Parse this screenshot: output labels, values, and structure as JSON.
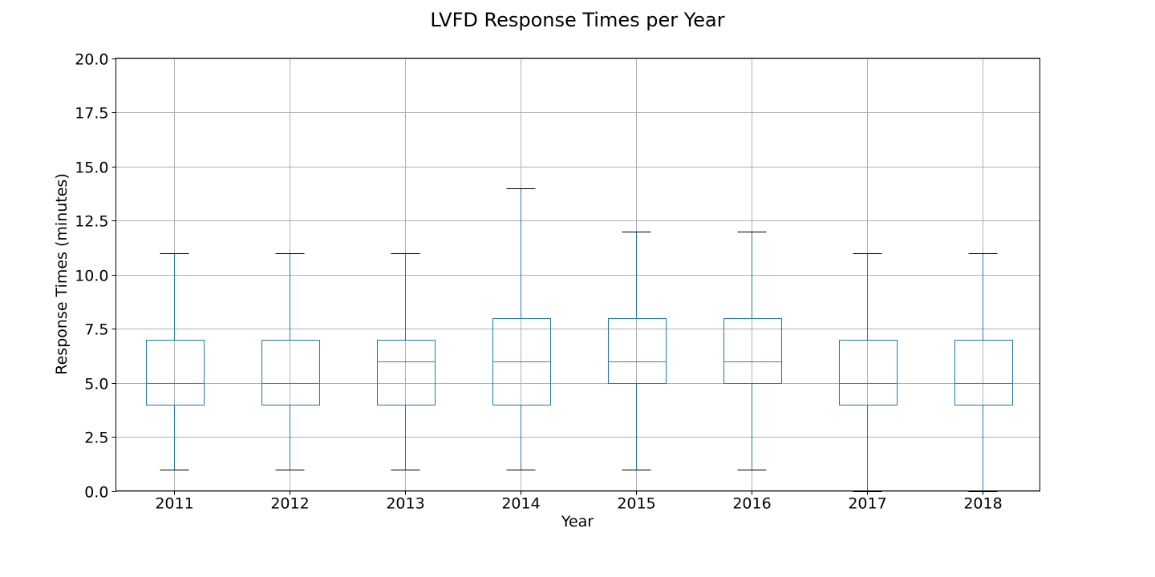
{
  "chart_data": {
    "type": "box",
    "title": "LVFD Response Times per Year",
    "xlabel": "Year",
    "ylabel": "Response Times (minutes)",
    "ylim": [
      0,
      20
    ],
    "yticks": [
      "0.0",
      "2.5",
      "5.0",
      "7.5",
      "10.0",
      "12.5",
      "15.0",
      "17.5",
      "20.0"
    ],
    "ytick_values": [
      0,
      2.5,
      5,
      7.5,
      10,
      12.5,
      15,
      17.5,
      20
    ],
    "grid": true,
    "categories": [
      "2011",
      "2012",
      "2013",
      "2014",
      "2015",
      "2016",
      "2017",
      "2018"
    ],
    "boxes": [
      {
        "category": "2011",
        "whisker_low": 1,
        "q1": 4,
        "median": 5,
        "q3": 7,
        "whisker_high": 11
      },
      {
        "category": "2012",
        "whisker_low": 1,
        "q1": 4,
        "median": 5,
        "q3": 7,
        "whisker_high": 11
      },
      {
        "category": "2013",
        "whisker_low": 1,
        "q1": 4,
        "median": 6,
        "q3": 7,
        "whisker_high": 11
      },
      {
        "category": "2014",
        "whisker_low": 1,
        "q1": 4,
        "median": 6,
        "q3": 8,
        "whisker_high": 14
      },
      {
        "category": "2015",
        "whisker_low": 1,
        "q1": 5,
        "median": 6,
        "q3": 8,
        "whisker_high": 12
      },
      {
        "category": "2016",
        "whisker_low": 1,
        "q1": 5,
        "median": 6,
        "q3": 8,
        "whisker_high": 12
      },
      {
        "category": "2017",
        "whisker_low": 0,
        "q1": 4,
        "median": 5,
        "q3": 7,
        "whisker_high": 11
      },
      {
        "category": "2018",
        "whisker_low": 0,
        "q1": 4,
        "median": 5,
        "q3": 7,
        "whisker_high": 11
      }
    ],
    "colors": {
      "box": "#1f77b4",
      "median": "#2ca02c",
      "cap": "#000000",
      "grid": "#b0b0b0",
      "axes": "#000000"
    }
  }
}
